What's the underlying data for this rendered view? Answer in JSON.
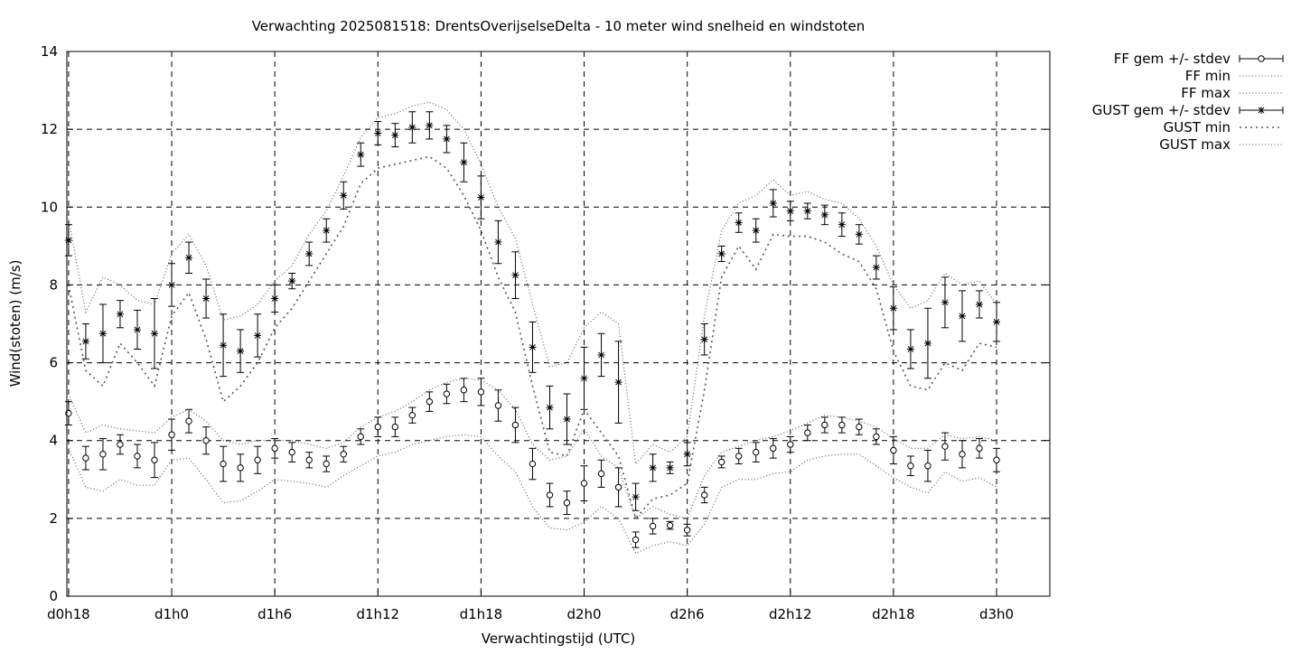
{
  "chart_data": {
    "type": "line",
    "title": "Verwachting 2025081518: DrentsOverijselseDelta - 10 meter wind snelheid en windstoten",
    "xlabel": "Verwachtingstijd (UTC)",
    "ylabel": "Wind(stoten) (m/s)",
    "ylim": [
      0,
      14
    ],
    "yticks": [
      0,
      2,
      4,
      6,
      8,
      10,
      12,
      14
    ],
    "xlim": [
      -0.1,
      57.1
    ],
    "xticks": [
      {
        "x": 0,
        "label": "d0h18"
      },
      {
        "x": 6,
        "label": "d1h0"
      },
      {
        "x": 12,
        "label": "d1h6"
      },
      {
        "x": 18,
        "label": "d1h12"
      },
      {
        "x": 24,
        "label": "d1h18"
      },
      {
        "x": 30,
        "label": "d2h0"
      },
      {
        "x": 36,
        "label": "d2h6"
      },
      {
        "x": 42,
        "label": "d2h12"
      },
      {
        "x": 48,
        "label": "d2h18"
      },
      {
        "x": 54,
        "label": "d3h0"
      }
    ],
    "grid": true,
    "legend_position": "outside-top-right",
    "x": [
      0,
      1,
      2,
      3,
      4,
      5,
      6,
      7,
      8,
      9,
      10,
      11,
      12,
      13,
      14,
      15,
      16,
      17,
      18,
      19,
      20,
      21,
      22,
      23,
      24,
      25,
      26,
      27,
      28,
      29,
      30,
      31,
      32,
      33,
      34,
      35,
      36,
      37,
      38,
      39,
      40,
      41,
      42,
      43,
      44,
      45,
      46,
      47,
      48,
      49,
      50,
      51,
      52,
      53,
      54
    ],
    "series": [
      {
        "name": "FF gem +/- stdev",
        "style": "points-errorbars",
        "marker": "circle",
        "values": [
          4.7,
          3.55,
          3.65,
          3.9,
          3.6,
          3.5,
          4.15,
          4.5,
          4.0,
          3.4,
          3.3,
          3.5,
          3.8,
          3.7,
          3.5,
          3.4,
          3.65,
          4.1,
          4.35,
          4.35,
          4.65,
          5.0,
          5.2,
          5.3,
          5.25,
          4.9,
          4.4,
          3.4,
          2.6,
          2.4,
          2.9,
          3.15,
          2.8,
          1.45,
          1.8,
          1.82,
          1.7,
          2.6,
          3.45,
          3.6,
          3.7,
          3.8,
          3.9,
          4.2,
          4.4,
          4.4,
          4.35,
          4.1,
          3.75,
          3.35,
          3.35,
          3.85,
          3.65,
          3.8,
          3.5
        ],
        "stdev": [
          0.3,
          0.3,
          0.4,
          0.25,
          0.3,
          0.45,
          0.4,
          0.3,
          0.35,
          0.45,
          0.35,
          0.35,
          0.25,
          0.25,
          0.2,
          0.2,
          0.2,
          0.2,
          0.25,
          0.25,
          0.2,
          0.25,
          0.25,
          0.3,
          0.35,
          0.4,
          0.45,
          0.4,
          0.3,
          0.3,
          0.45,
          0.35,
          0.5,
          0.2,
          0.2,
          0.1,
          0.15,
          0.2,
          0.15,
          0.2,
          0.25,
          0.25,
          0.2,
          0.2,
          0.2,
          0.2,
          0.2,
          0.2,
          0.35,
          0.25,
          0.4,
          0.35,
          0.35,
          0.25,
          0.3
        ]
      },
      {
        "name": "FF min",
        "style": "dotted",
        "values": [
          3.8,
          2.8,
          2.7,
          3.0,
          2.85,
          2.85,
          3.5,
          3.55,
          3.0,
          2.4,
          2.45,
          2.7,
          3.0,
          2.95,
          2.9,
          2.8,
          3.1,
          3.35,
          3.6,
          3.7,
          3.9,
          4.0,
          4.1,
          4.15,
          4.1,
          3.6,
          3.2,
          2.3,
          1.75,
          1.7,
          1.9,
          2.3,
          2.0,
          1.1,
          1.3,
          1.4,
          1.3,
          1.85,
          2.8,
          3.0,
          3.0,
          3.15,
          3.2,
          3.5,
          3.6,
          3.65,
          3.65,
          3.35,
          3.05,
          2.8,
          2.65,
          3.2,
          2.95,
          3.05,
          2.8
        ]
      },
      {
        "name": "FF max",
        "style": "dotted",
        "values": [
          5.2,
          4.2,
          4.4,
          4.3,
          4.25,
          4.2,
          4.6,
          4.8,
          4.5,
          4.0,
          3.9,
          4.0,
          4.0,
          4.0,
          3.9,
          3.8,
          3.95,
          4.35,
          4.6,
          4.75,
          5.0,
          5.3,
          5.5,
          5.6,
          5.55,
          5.3,
          4.8,
          3.9,
          3.5,
          3.6,
          4.3,
          3.6,
          3.3,
          2.0,
          2.3,
          2.1,
          2.0,
          3.1,
          3.7,
          3.85,
          4.0,
          4.1,
          4.25,
          4.45,
          4.65,
          4.6,
          4.5,
          4.35,
          4.05,
          3.8,
          3.8,
          4.15,
          4.05,
          4.1,
          4.0
        ]
      },
      {
        "name": "GUST gem +/- stdev",
        "style": "points-errorbars",
        "marker": "star",
        "values": [
          9.15,
          6.55,
          6.75,
          7.25,
          6.85,
          6.75,
          8.0,
          8.7,
          7.65,
          6.45,
          6.3,
          6.7,
          7.65,
          8.1,
          8.8,
          9.4,
          10.3,
          11.35,
          11.9,
          11.85,
          12.05,
          12.1,
          11.75,
          11.15,
          10.25,
          9.1,
          8.25,
          6.4,
          4.85,
          4.55,
          5.6,
          6.2,
          5.5,
          2.55,
          3.3,
          3.3,
          3.65,
          6.6,
          8.8,
          9.6,
          9.4,
          10.1,
          9.9,
          9.9,
          9.8,
          9.55,
          9.3,
          8.45,
          7.4,
          6.35,
          6.5,
          7.55,
          7.2,
          7.5,
          7.05
        ],
        "stdev": [
          0.4,
          0.45,
          0.75,
          0.35,
          0.5,
          0.9,
          0.55,
          0.4,
          0.5,
          0.8,
          0.55,
          0.55,
          0.35,
          0.2,
          0.3,
          0.3,
          0.35,
          0.3,
          0.3,
          0.3,
          0.4,
          0.35,
          0.35,
          0.5,
          0.55,
          0.55,
          0.6,
          0.65,
          0.55,
          0.65,
          0.8,
          0.55,
          1.05,
          0.35,
          0.35,
          0.15,
          0.3,
          0.4,
          0.2,
          0.25,
          0.3,
          0.35,
          0.25,
          0.2,
          0.25,
          0.3,
          0.25,
          0.3,
          0.55,
          0.5,
          0.9,
          0.65,
          0.65,
          0.35,
          0.5
        ]
      },
      {
        "name": "GUST min",
        "style": "dotted-coarse",
        "values": [
          8.0,
          5.8,
          5.4,
          6.5,
          6.0,
          5.4,
          7.2,
          7.8,
          6.6,
          5.0,
          5.4,
          6.0,
          6.9,
          7.4,
          8.1,
          8.8,
          9.5,
          10.6,
          11.0,
          11.1,
          11.2,
          11.3,
          11.0,
          10.3,
          9.4,
          8.2,
          7.3,
          5.4,
          3.7,
          3.6,
          4.8,
          4.2,
          3.6,
          2.0,
          2.5,
          2.6,
          2.9,
          5.3,
          8.2,
          9.0,
          8.4,
          9.3,
          9.25,
          9.25,
          9.1,
          8.8,
          8.6,
          7.9,
          6.3,
          5.4,
          5.3,
          6.0,
          5.8,
          6.5,
          6.4
        ]
      },
      {
        "name": "GUST max",
        "style": "dotted",
        "values": [
          9.7,
          7.3,
          8.2,
          8.0,
          7.6,
          7.5,
          8.8,
          9.3,
          8.5,
          7.1,
          7.2,
          7.5,
          8.1,
          8.5,
          9.3,
          9.9,
          10.8,
          11.8,
          12.3,
          12.4,
          12.6,
          12.7,
          12.5,
          12.0,
          11.1,
          10.0,
          9.2,
          7.5,
          5.9,
          6.0,
          6.9,
          7.3,
          7.0,
          3.4,
          3.9,
          3.7,
          4.1,
          7.2,
          9.4,
          10.1,
          10.3,
          10.7,
          10.3,
          10.4,
          10.2,
          10.1,
          9.7,
          9.0,
          8.0,
          7.4,
          7.6,
          8.3,
          8.0,
          8.1,
          7.5
        ]
      }
    ]
  }
}
